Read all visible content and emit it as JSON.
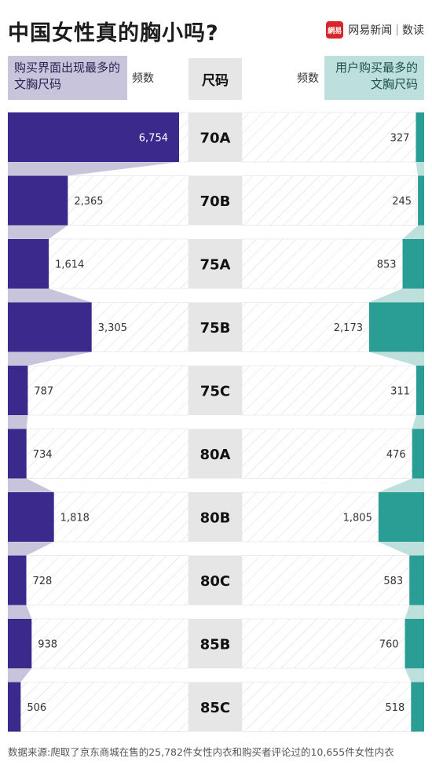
{
  "header": {
    "title": "中国女性真的胸小吗?",
    "brand_logo": "網易",
    "brand_name": "网易新闻",
    "brand_sep": "|",
    "brand_section": "数读"
  },
  "legend": {
    "left_label": "购买界面出现最多的文胸尺码",
    "left_freq": "频数",
    "center": "尺码",
    "right_freq": "频数",
    "right_label": "用户购买最多的文胸尺码"
  },
  "colors": {
    "left": "#3b2a8c",
    "right": "#2a9d95",
    "left_light": "#c7c4dc",
    "right_light": "#bde0dd",
    "size_bg": "#e6e6e6"
  },
  "chart_data": {
    "type": "bar",
    "categories": [
      "70A",
      "70B",
      "75A",
      "75B",
      "75C",
      "80A",
      "80B",
      "80C",
      "85B",
      "85C"
    ],
    "series": [
      {
        "name": "购买界面出现最多的文胸尺码",
        "values": [
          6754,
          2365,
          1614,
          3305,
          787,
          734,
          1818,
          728,
          938,
          506
        ]
      },
      {
        "name": "用户购买最多的文胸尺码",
        "values": [
          327,
          245,
          853,
          2173,
          311,
          476,
          1805,
          583,
          760,
          518
        ]
      }
    ],
    "value_labels_left": [
      "6,754",
      "2,365",
      "1,614",
      "3,305",
      "787",
      "734",
      "1,818",
      "728",
      "938",
      "506"
    ],
    "value_labels_right": [
      "327",
      "245",
      "853",
      "2,173",
      "311",
      "476",
      "1,805",
      "583",
      "760",
      "518"
    ]
  },
  "source": "数据来源:爬取了京东商城在售的25,782件女性内衣和购买者评论过的10,655件女性内衣"
}
